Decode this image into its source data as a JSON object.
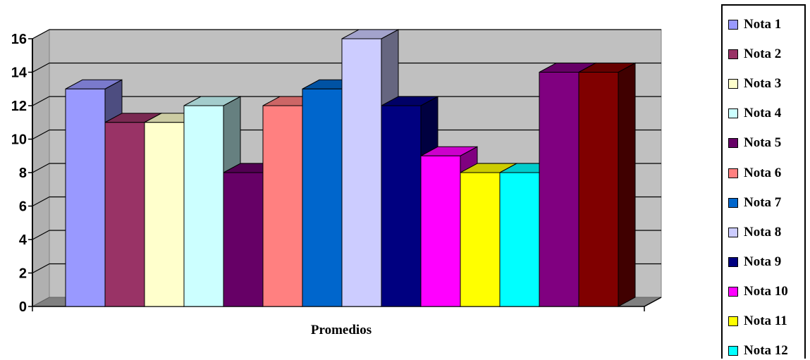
{
  "chart_data": {
    "type": "bar",
    "categories": [
      "Promedios"
    ],
    "xlabel": "",
    "ylabel": "",
    "ylim": [
      0,
      16
    ],
    "yticks": [
      "0",
      "2",
      "4",
      "6",
      "8",
      "10",
      "12",
      "14",
      "16"
    ],
    "grid": true,
    "legend_position": "right",
    "series": [
      {
        "name": "Nota 1",
        "values": [
          13
        ],
        "color": "#9999FF"
      },
      {
        "name": "Nota 2",
        "values": [
          11
        ],
        "color": "#993366"
      },
      {
        "name": "Nota 3",
        "values": [
          11
        ],
        "color": "#FFFFCC"
      },
      {
        "name": "Nota 4",
        "values": [
          12
        ],
        "color": "#CCFFFF"
      },
      {
        "name": "Nota 5",
        "values": [
          8
        ],
        "color": "#660066"
      },
      {
        "name": "Nota 6",
        "values": [
          12
        ],
        "color": "#FF8080"
      },
      {
        "name": "Nota 7",
        "values": [
          13
        ],
        "color": "#0066CC"
      },
      {
        "name": "Nota 8",
        "values": [
          16
        ],
        "color": "#CCCCFF"
      },
      {
        "name": "Nota 9",
        "values": [
          12
        ],
        "color": "#000080"
      },
      {
        "name": "Nota 10",
        "values": [
          9
        ],
        "color": "#FF00FF"
      },
      {
        "name": "Nota 11",
        "values": [
          8
        ],
        "color": "#FFFF00"
      },
      {
        "name": "Nota 12",
        "values": [
          8
        ],
        "color": "#00FFFF"
      },
      {
        "name": "",
        "values": [
          14
        ],
        "color": "#800080"
      },
      {
        "name": "",
        "values": [
          14
        ],
        "color": "#800000"
      }
    ]
  }
}
